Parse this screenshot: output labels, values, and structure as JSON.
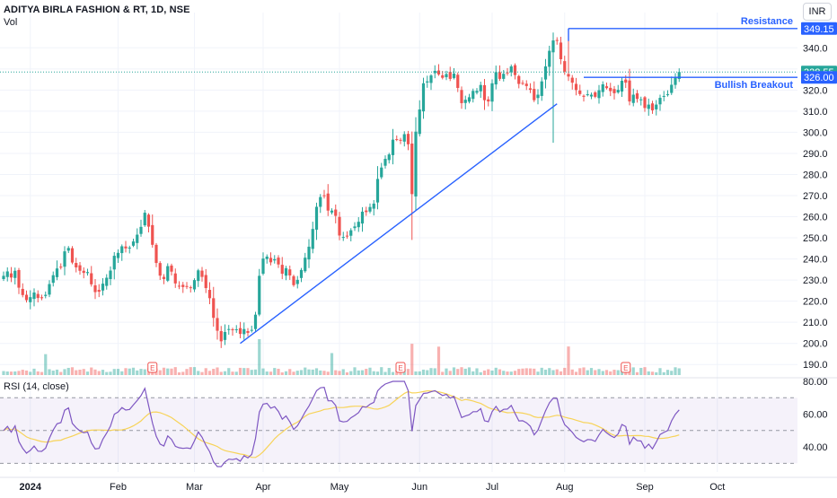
{
  "header": {
    "title": "ADITYA BIRLA FASHION & RT, 1D, NSE",
    "volume_label": "Vol"
  },
  "currency": "INR",
  "rsi": {
    "label": "RSI (14, close)"
  },
  "chart_data": {
    "type": "candlestick",
    "symbol": "ADITYA BIRLA FASHION & RT",
    "interval": "1D",
    "exchange": "NSE",
    "currency": "INR",
    "price_axis": {
      "min": 185,
      "max": 355,
      "ticks": [
        190,
        200,
        210,
        220,
        230,
        240,
        250,
        260,
        270,
        280,
        290,
        300,
        310,
        320,
        330,
        340
      ]
    },
    "price_labels": [
      {
        "value": 349.15,
        "text": "349.15",
        "color": "#2962ff"
      },
      {
        "value": 328.55,
        "text": "328.55",
        "color": "#26a69a"
      },
      {
        "value": 326.0,
        "text": "326.00",
        "color": "#2962ff"
      }
    ],
    "x_ticks": [
      {
        "day": 7,
        "label": "2024",
        "bold": true
      },
      {
        "day": 30,
        "label": "Feb"
      },
      {
        "day": 50,
        "label": "Mar"
      },
      {
        "day": 68,
        "label": "Apr"
      },
      {
        "day": 88,
        "label": "May"
      },
      {
        "day": 109,
        "label": "Jun"
      },
      {
        "day": 128,
        "label": "Jul"
      },
      {
        "day": 147,
        "label": "Aug"
      },
      {
        "day": 168,
        "label": "Sep"
      },
      {
        "day": 187,
        "label": "Oct"
      }
    ],
    "closes": [
      232.0,
      234.1,
      231.2,
      234.4,
      226.4,
      222.9,
      220.5,
      221.9,
      224.1,
      221.5,
      221.4,
      223.0,
      228.1,
      232.3,
      235.5,
      236.1,
      243.6,
      245.2,
      238.3,
      236.0,
      234.4,
      233.4,
      233.8,
      228.0,
      224.3,
      224.5,
      228.3,
      231.1,
      234.5,
      241.5,
      242.9,
      246.0,
      245.0,
      245.4,
      248.3,
      251.5,
      255.2,
      261.9,
      255.3,
      246.7,
      238.1,
      232.1,
      230.5,
      236.6,
      234.0,
      228.4,
      227.2,
      226.7,
      226.9,
      226.5,
      230.0,
      234.6,
      231.5,
      226.2,
      221.4,
      212.1,
      206.0,
      201.0,
      205.4,
      206.8,
      206.3,
      206.7,
      204.5,
      206.8,
      205.0,
      206.4,
      213.6,
      232.0,
      240.2,
      241.1,
      238.4,
      239.9,
      237.4,
      233.0,
      235.6,
      232.2,
      227.6,
      230.1,
      234.8,
      240.6,
      245.8,
      254.2,
      264.7,
      269.3,
      270.0,
      262.9,
      262.9,
      260.4,
      251.1,
      250.4,
      250.8,
      253.6,
      255.4,
      257.6,
      262.4,
      262.2,
      264.6,
      266.2,
      277.9,
      283.3,
      287.4,
      289.5,
      296.5,
      296.5,
      296.0,
      299.1,
      294.3,
      270.7,
      300.3,
      310.8,
      323.2,
      324.1,
      326.9,
      329.1,
      327.4,
      325.8,
      327.6,
      325.3,
      327.8,
      321.0,
      313.8,
      315.4,
      316.6,
      319.6,
      319.6,
      322.4,
      315.2,
      314.6,
      323.2,
      328.5,
      325.3,
      327.7,
      327.9,
      331.2,
      327.1,
      322.9,
      323.0,
      321.9,
      320.1,
      315.2,
      317.8,
      324.1,
      331.2,
      338.6,
      343.5,
      343.4,
      334.6,
      328.7,
      326.4,
      323.5,
      320.0,
      318.1,
      316.8,
      318.0,
      317.8,
      316.8,
      319.9,
      322.7,
      320.9,
      319.5,
      318.5,
      320.1,
      324.4,
      323.5,
      314.6,
      317.8,
      315.8,
      315.6,
      311.5,
      313.1,
      310.4,
      313.1,
      316.3,
      317.2,
      318.0,
      322.5,
      326.0,
      328.55
    ],
    "resistance_line": {
      "label": "Resistance",
      "price": 349.15,
      "from_day": 148
    },
    "breakout_line": {
      "label": "Bullish Breakout",
      "price": 326.0,
      "from_day": 152
    },
    "trendline": {
      "from": {
        "day": 62,
        "price": 200
      },
      "to": {
        "day": 145,
        "price": 313.5
      }
    },
    "earnings_marker": {
      "label": "E",
      "days": [
        39,
        104,
        163
      ]
    },
    "rsi_axis": {
      "min": 28,
      "max": 80,
      "ticks": [
        40.0,
        60.0,
        80.0
      ],
      "bands": [
        30,
        50,
        70
      ]
    }
  },
  "colors": {
    "up": "#26a69a",
    "down": "#ef5350",
    "line": "#2962ff",
    "rsi": "#7e57c2",
    "rsi_ma": "#f7d358"
  }
}
